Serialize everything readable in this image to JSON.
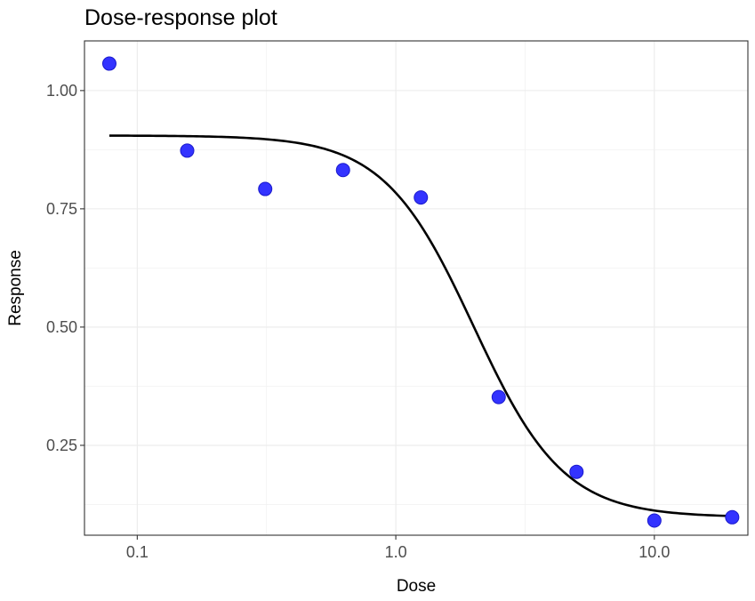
{
  "chart_data": {
    "type": "scatter",
    "title": "Dose-response plot",
    "xlabel": "Dose",
    "ylabel": "Response",
    "x_scale": "log10",
    "xlim": [
      0.0625,
      23
    ],
    "ylim": [
      0.06,
      1.105
    ],
    "x_ticks": [
      0.1,
      1.0,
      10.0
    ],
    "x_tick_labels": [
      "0.1",
      "1.0",
      "10.0"
    ],
    "y_ticks": [
      0.25,
      0.5,
      0.75,
      1.0
    ],
    "y_tick_labels": [
      "0.25",
      "0.50",
      "0.75",
      "1.00"
    ],
    "y_minor_ticks": [
      0.125,
      0.375,
      0.625,
      0.875
    ],
    "grid": true,
    "series": [
      {
        "type": "scatter",
        "color": "#3333ff",
        "points": [
          {
            "x": 0.078,
            "y": 1.057
          },
          {
            "x": 0.156,
            "y": 0.873
          },
          {
            "x": 0.3125,
            "y": 0.792
          },
          {
            "x": 0.625,
            "y": 0.832
          },
          {
            "x": 1.25,
            "y": 0.774
          },
          {
            "x": 2.5,
            "y": 0.352
          },
          {
            "x": 5.0,
            "y": 0.194
          },
          {
            "x": 10.0,
            "y": 0.091
          },
          {
            "x": 20.0,
            "y": 0.098
          }
        ]
      },
      {
        "type": "line",
        "color": "#000000",
        "model": "four-parameter log-logistic",
        "params": {
          "top": 0.905,
          "bottom": 0.098,
          "ec50": 2.0,
          "hill": 2.5
        },
        "x_range": [
          0.078,
          20.0
        ]
      }
    ]
  }
}
